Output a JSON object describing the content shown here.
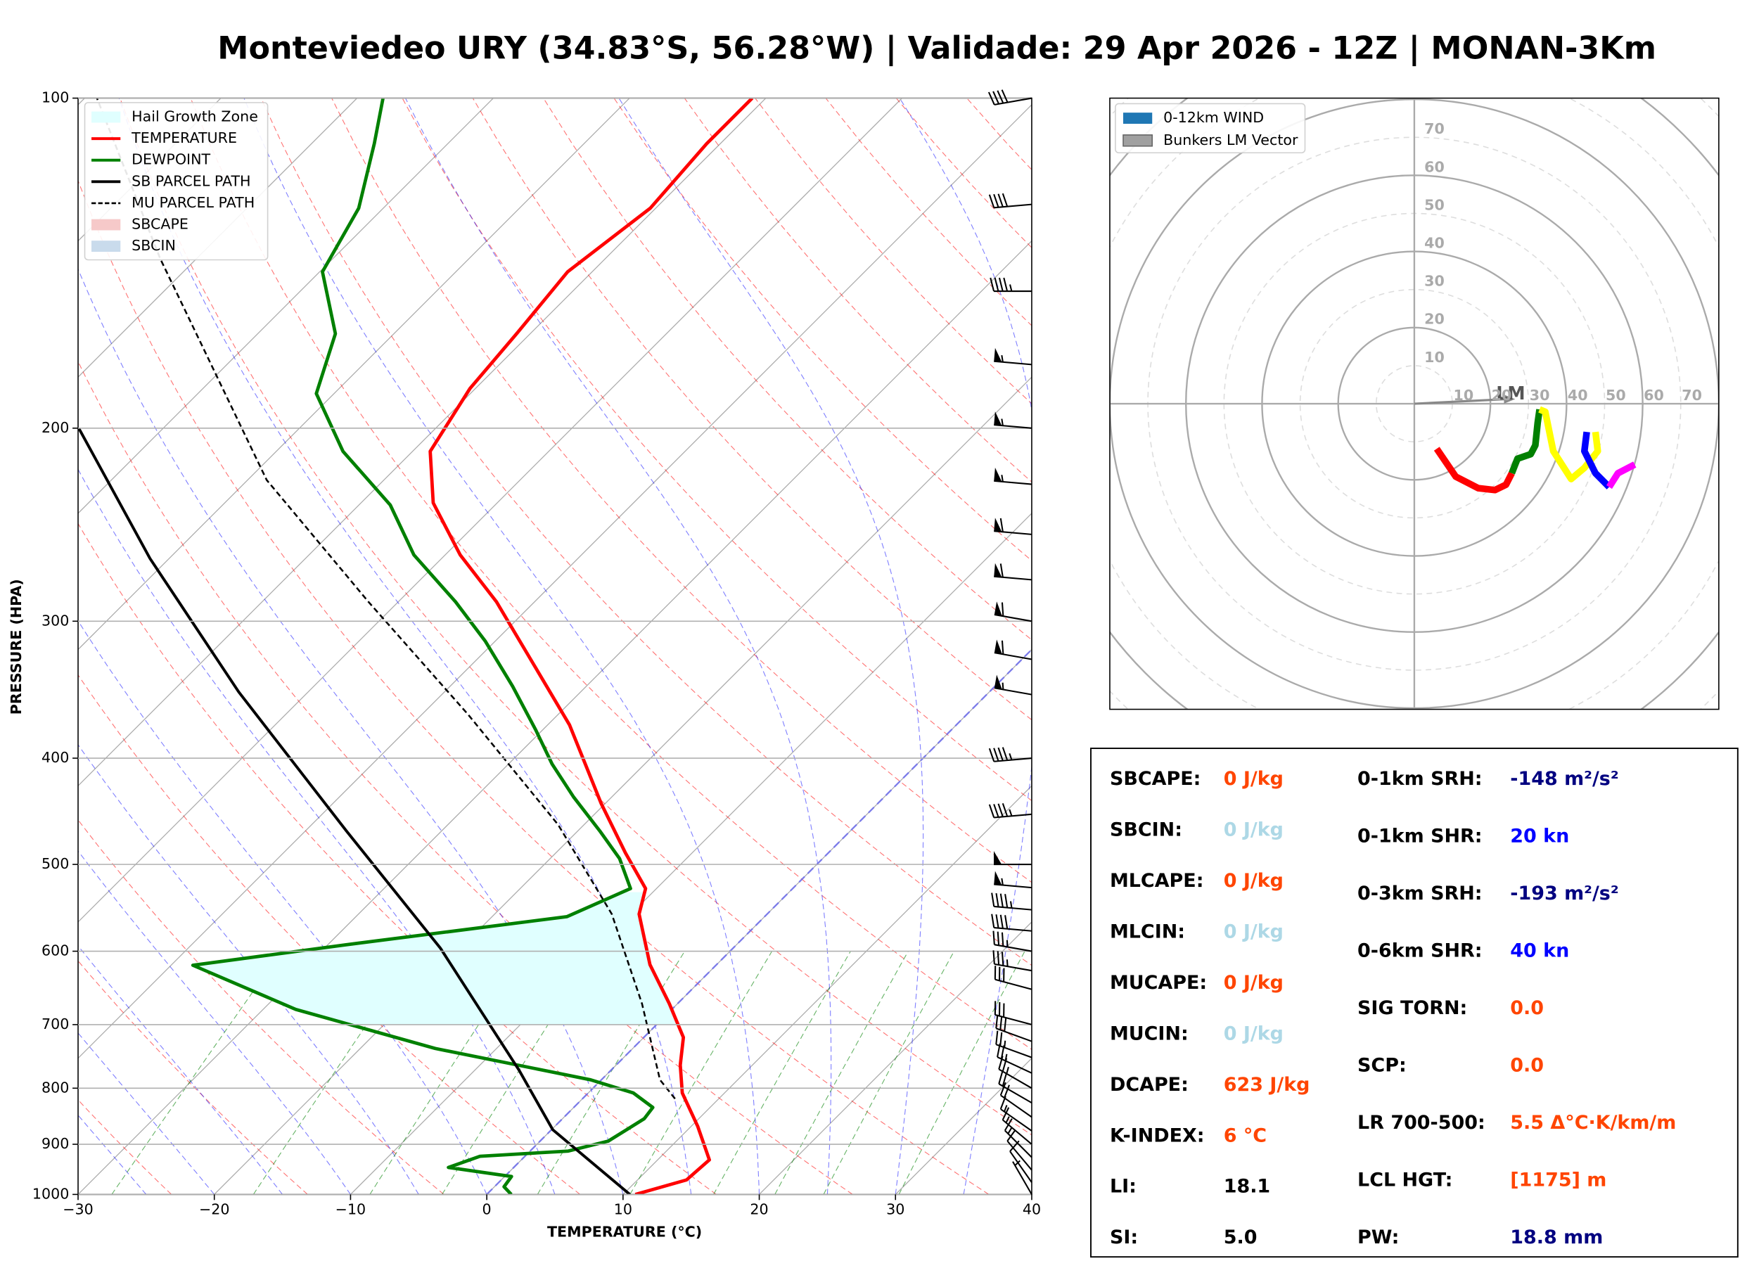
{
  "title": "Monteviedeo URY (34.83°S, 56.28°W) | Validade: 29 Apr 2026 - 12Z | MONAN-3Km",
  "chart_data": [
    {
      "type": "skewt",
      "xlabel": "TEMPERATURE (°C)",
      "ylabel": "PRESSURE (HPA)",
      "xlim": [
        -30,
        40
      ],
      "ylim": [
        1000,
        100
      ],
      "log_y": true,
      "grid": true,
      "legend": "upper left",
      "xticks": [
        {
          "value": -30,
          "label": "−30"
        },
        {
          "value": -20,
          "label": "−20"
        },
        {
          "value": -10,
          "label": "−10"
        },
        0,
        10,
        20,
        30,
        40
      ],
      "yticks": [
        1000,
        900,
        800,
        700,
        600,
        500,
        400,
        300,
        200,
        100
      ],
      "series": [
        {
          "name": "TEMPERATURE",
          "color": "#ff0000",
          "dashed": false,
          "width": 3,
          "pressure": [
            1000,
            970,
            930,
            867,
            808,
            762,
            719,
            670,
            617,
            555,
            526,
            488,
            440,
            373,
            344,
            288,
            261,
            234,
            210,
            184,
            164,
            144,
            126,
            110,
            100
          ],
          "values": [
            10.9,
            13.6,
            13.8,
            10.5,
            6.9,
            4.7,
            2.9,
            -0.6,
            -4.9,
            -9.4,
            -10.8,
            -14.9,
            -20.3,
            -28.4,
            -32.9,
            -42.8,
            -48.9,
            -54.7,
            -58.7,
            -60.4,
            -61,
            -61.8,
            -60.4,
            -61,
            -61
          ]
        },
        {
          "name": "DEWPOINT",
          "color": "#008000",
          "dashed": false,
          "width": 3,
          "pressure": [
            1000,
            984,
            963,
            945,
            923,
            913,
            894,
            853,
            833,
            808,
            786,
            736,
            678,
            618,
            592,
            558,
            526,
            494,
            466,
            434,
            405,
            377,
            344,
            313,
            288,
            261,
            235,
            210,
            186,
            164,
            144,
            126,
            110,
            100
          ],
          "values": [
            1.8,
            0.7,
            0.5,
            -4.8,
            -3.3,
            2.8,
            5.0,
            6.0,
            5.8,
            3.3,
            -0.8,
            -14.5,
            -27.6,
            -38.4,
            -28.7,
            -14.5,
            -11.9,
            -14.9,
            -18.4,
            -22.8,
            -26.8,
            -30.5,
            -35.4,
            -40.7,
            -45.8,
            -52.3,
            -57.7,
            -65.1,
            -71.3,
            -74.3,
            -79.8,
            -81.8,
            -85.4,
            -88.1
          ]
        },
        {
          "name": "SB PARCEL PATH",
          "color": "#000000",
          "dashed": false,
          "width": 2.5,
          "pressure": [
            1000,
            873,
            771,
            596,
            466,
            348,
            263,
            200
          ],
          "values": [
            10.5,
            0.1,
            -6.7,
            -21.5,
            -37,
            -55.1,
            -71.4,
            -86.2
          ]
        },
        {
          "name": "MU PARCEL PATH",
          "color": "#000000",
          "dashed": true,
          "width": 1.6,
          "pressure": [
            818,
            786,
            670,
            555,
            460,
            365,
            288,
            223,
            140,
            100
          ],
          "values": [
            6.8,
            4.3,
            -2.6,
            -11.4,
            -21.9,
            -36.6,
            -52.2,
            -68.6,
            -92.7,
            -109.1
          ]
        }
      ],
      "shaded": [
        {
          "name": "Hail Growth Zone",
          "color": "#e0ffff",
          "pressure_range": [
            700,
            530
          ]
        },
        {
          "name": "SBCAPE",
          "color": "#f6c9c9"
        },
        {
          "name": "SBCIN",
          "color": "#c9dbec"
        }
      ],
      "wind_barbs": {
        "pressure": [
          100,
          125,
          150,
          175,
          200,
          225,
          250,
          275,
          300,
          325,
          350,
          400,
          450,
          500,
          525,
          550,
          575,
          600,
          625,
          650,
          700,
          725,
          750,
          775,
          800,
          825,
          850,
          875,
          900,
          925,
          950,
          975,
          1000
        ],
        "speed": [
          40,
          40,
          45,
          55,
          55,
          55,
          60,
          60,
          60,
          60,
          55,
          45,
          45,
          50,
          55,
          45,
          40,
          35,
          35,
          30,
          30,
          30,
          25,
          25,
          25,
          20,
          20,
          15,
          15,
          15,
          10,
          10,
          5
        ],
        "direction": [
          260,
          265,
          270,
          275,
          275,
          275,
          275,
          275,
          280,
          280,
          280,
          265,
          265,
          270,
          275,
          275,
          275,
          280,
          280,
          285,
          285,
          290,
          290,
          295,
          300,
          300,
          305,
          305,
          310,
          315,
          320,
          325,
          330
        ]
      }
    },
    {
      "type": "hodograph",
      "xlim": [
        -80,
        80
      ],
      "ylim": [
        -80,
        80
      ],
      "rings": [
        10,
        20,
        30,
        40,
        50,
        60,
        70
      ],
      "series": [
        {
          "color": "#ff0000",
          "u": [
            5.9,
            10.9,
            16.8,
            21.2,
            24.1,
            25.6
          ],
          "v": [
            -11.8,
            -19.1,
            -22.1,
            -22.6,
            -21.2,
            -18.2
          ]
        },
        {
          "color": "#008000",
          "u": [
            25.6,
            27.1,
            30.6,
            31.8,
            32.4,
            32.9
          ],
          "v": [
            -18.2,
            -14.4,
            -13.2,
            -10.9,
            -5.0,
            -1.5
          ]
        },
        {
          "color": "#ffff00",
          "u": [
            32.9,
            34.4,
            36.5,
            41.2,
            44.7,
            48.2,
            47.6
          ],
          "v": [
            -1.5,
            -2.1,
            -12.4,
            -19.7,
            -16.8,
            -12.4,
            -7.4
          ]
        },
        {
          "color": "#0000ff",
          "u": [
            45.3,
            44.7,
            47.6,
            51.2
          ],
          "v": [
            -7.4,
            -12.4,
            -18.2,
            -21.8
          ]
        },
        {
          "color": "#ff00ff",
          "u": [
            51.2,
            53.5,
            57.9
          ],
          "v": [
            -21.8,
            -18.2,
            -15.9
          ]
        }
      ],
      "legend_entries": [
        {
          "name": "0-12km WIND",
          "color": "#1f77b4"
        },
        {
          "name": "Bunkers LM Vector",
          "color": "#a0a0a0"
        }
      ],
      "bunkers_lm": {
        "label": "LM",
        "u": 26.5,
        "v": 1.2
      }
    }
  ],
  "indices": {
    "left": [
      {
        "label": "SBCAPE:",
        "value": "0 J/kg",
        "color": "#ff4500"
      },
      {
        "label": "SBCIN:",
        "value": "0 J/kg",
        "color": "#add8e6"
      },
      {
        "label": "MLCAPE:",
        "value": "0 J/kg",
        "color": "#ff4500"
      },
      {
        "label": "MLCIN:",
        "value": "0 J/kg",
        "color": "#add8e6"
      },
      {
        "label": "MUCAPE:",
        "value": "0 J/kg",
        "color": "#ff4500"
      },
      {
        "label": "MUCIN:",
        "value": "0 J/kg",
        "color": "#add8e6"
      },
      {
        "label": "DCAPE:",
        "value": "623 J/kg",
        "color": "#ff4500"
      },
      {
        "label": "K-INDEX:",
        "value": "6 °C",
        "color": "#ff4500"
      },
      {
        "label": "LI:",
        "value": "18.1",
        "color": "#000000"
      },
      {
        "label": "SI:",
        "value": "5.0",
        "color": "#000000"
      }
    ],
    "right": [
      {
        "label": "0-1km SRH:",
        "value": "-148 m²/s²",
        "color": "#000080"
      },
      {
        "label": "0-1km SHR:",
        "value": "20 kn",
        "color": "#0000ff"
      },
      {
        "label": "0-3km SRH:",
        "value": "-193 m²/s²",
        "color": "#000080"
      },
      {
        "label": "0-6km SHR:",
        "value": "40 kn",
        "color": "#0000ff"
      },
      {
        "label": "SIG TORN:",
        "value": "0.0",
        "color": "#ff4500"
      },
      {
        "label": "SCP:",
        "value": "0.0",
        "color": "#ff4500"
      },
      {
        "label": "LR 700-500:",
        "value": "5.5 Δ°C·K/km/m",
        "color": "#ff4500"
      },
      {
        "label": "LCL HGT:",
        "value": "[1175] m",
        "color": "#ff4500"
      },
      {
        "label": "PW:",
        "value": "18.8 mm",
        "color": "#000080"
      }
    ]
  }
}
